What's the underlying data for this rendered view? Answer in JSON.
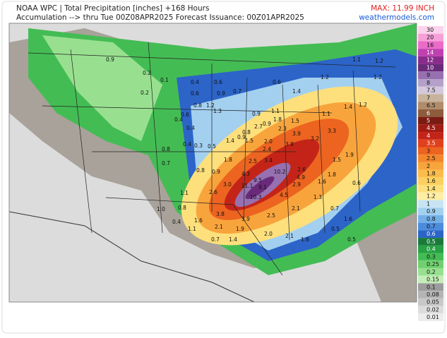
{
  "header": {
    "title": "NOAA WPC | Total Precipitation [inches] +168 Hours",
    "subtitle": "Accumulation --> thru Tue 00Z08APR2025   Forecast Issuance: 00Z01APR2025",
    "max": "MAX: 11.99 INCH",
    "site": "weathermodels.com"
  },
  "legend": {
    "levels": [
      {
        "value": 30,
        "color": "#fbd3ec"
      },
      {
        "value": 20,
        "color": "#f6a0d8"
      },
      {
        "value": 16,
        "color": "#ea6cc8"
      },
      {
        "value": 14,
        "color": "#c040b0"
      },
      {
        "value": 12,
        "color": "#8a2c8c"
      },
      {
        "value": 10,
        "color": "#6a2a7a"
      },
      {
        "value": 9,
        "color": "#9670b0"
      },
      {
        "value": 8,
        "color": "#b4a0c8"
      },
      {
        "value": 7.5,
        "color": "#d4c8dc"
      },
      {
        "value": 7,
        "color": "#c8b49c"
      },
      {
        "value": 6.5,
        "color": "#b08c6c"
      },
      {
        "value": 6,
        "color": "#8c5c3c"
      },
      {
        "value": 5,
        "color": "#7a1c14"
      },
      {
        "value": 4.5,
        "color": "#a01c14"
      },
      {
        "value": 4,
        "color": "#c42418"
      },
      {
        "value": 3.5,
        "color": "#e0401c"
      },
      {
        "value": 3,
        "color": "#ec6420"
      },
      {
        "value": 2.5,
        "color": "#f4862c"
      },
      {
        "value": 2,
        "color": "#f8a43c"
      },
      {
        "value": 1.8,
        "color": "#fbbc4c"
      },
      {
        "value": 1.6,
        "color": "#fcd060"
      },
      {
        "value": 1.4,
        "color": "#fde07c"
      },
      {
        "value": 1.2,
        "color": "#feeea4"
      },
      {
        "value": 1,
        "color": "#c8e4f4"
      },
      {
        "value": 0.9,
        "color": "#a4d0f0"
      },
      {
        "value": 0.8,
        "color": "#74b0e8"
      },
      {
        "value": 0.7,
        "color": "#4c8cdc"
      },
      {
        "value": 0.6,
        "color": "#2c64c8"
      },
      {
        "value": 0.5,
        "color": "#1a7a3a"
      },
      {
        "value": 0.4,
        "color": "#28a044"
      },
      {
        "value": 0.3,
        "color": "#44bc54"
      },
      {
        "value": 0.25,
        "color": "#70d070"
      },
      {
        "value": 0.2,
        "color": "#98e090"
      },
      {
        "value": 0.15,
        "color": "#c4eeb8"
      },
      {
        "value": 0.1,
        "color": "#9c9c9c"
      },
      {
        "value": 0.08,
        "color": "#b4b4b4"
      },
      {
        "value": 0.05,
        "color": "#c8c8c8"
      },
      {
        "value": 0.02,
        "color": "#dcdcdc"
      },
      {
        "value": 0.01,
        "color": "#ececec"
      }
    ]
  },
  "map": {
    "labels": [
      "0.9",
      "0.2",
      "0.1",
      "0.4",
      "0.6",
      "0.9",
      "0.6",
      "0.8",
      "1.2",
      "1.3",
      "0.6",
      "0.4",
      "0.4",
      "0.5",
      "0.3",
      "0.4",
      "0.8",
      "0.7",
      "0.8",
      "0.9",
      "1.1",
      "1.0",
      "0.8",
      "1.6",
      "1.1",
      "0.4",
      "0.7",
      "1.4",
      "1.9",
      "2.1",
      "3.8",
      "2.6",
      "3.0",
      "4.3",
      "1.8",
      "2.5",
      "2.4",
      "3.4",
      "2.0",
      "1.5",
      "1.4",
      "0.9",
      "2.7",
      "2.3",
      "3.9",
      "1.8",
      "3.9",
      "3.2",
      "3.3",
      "10.2",
      "9.5",
      "11.1",
      "9.1",
      "10.3",
      "4.5",
      "2.9",
      "2.6",
      "4.9",
      "3.9",
      "2.5",
      "2.1",
      "2.0",
      "2.1",
      "1.6",
      "1.3",
      "1.6",
      "1.8",
      "1.9",
      "1.5",
      "0.6",
      "0.5",
      "0.5",
      "0.7",
      "1.6",
      "1.2",
      "1.2",
      "1.4",
      "1.1",
      "1.5",
      "0.9",
      "1.1",
      "0.9",
      "1.2",
      "1.4",
      "0.8",
      "0.7",
      "0.6",
      "1.1",
      "1.2",
      "0.2"
    ]
  }
}
